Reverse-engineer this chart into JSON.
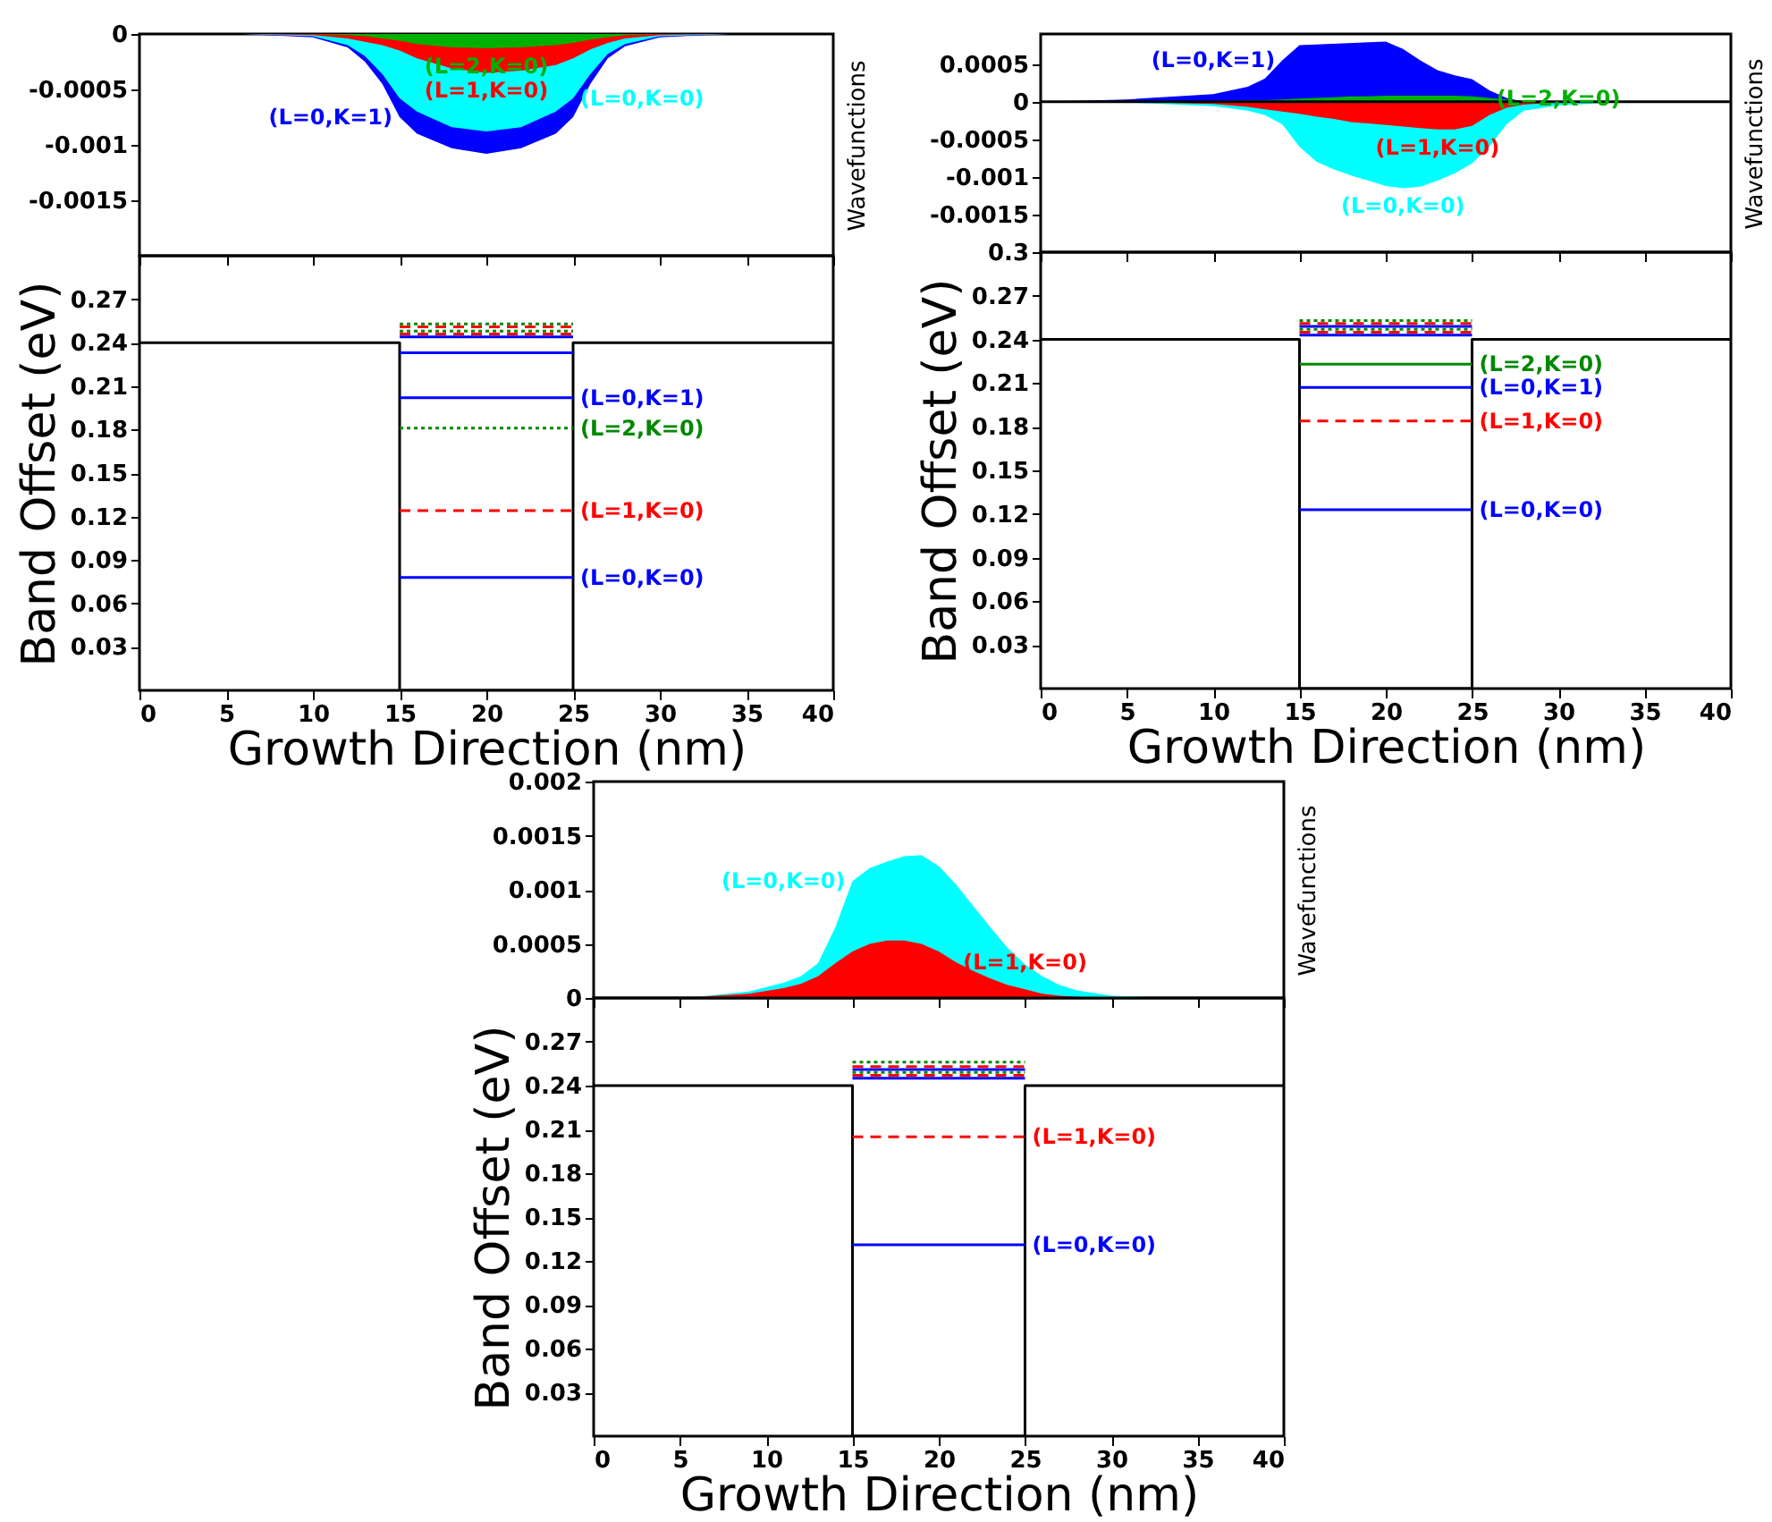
{
  "chart_data": [
    {
      "type": "area",
      "ylabel": "Wavefunctions",
      "xlim": [
        0,
        40
      ],
      "ylim": [
        -0.002,
        0
      ],
      "xticks": [
        0,
        5,
        10,
        15,
        20,
        25,
        30,
        35,
        40
      ],
      "yticks": [
        0,
        -0.0005,
        -0.001,
        -0.0015
      ],
      "tick_labels": "y",
      "x": [
        0,
        6,
        10,
        12,
        13,
        14,
        15,
        16,
        18,
        20,
        22,
        24,
        25,
        26,
        27,
        28,
        30,
        34,
        40
      ],
      "series": [
        {
          "name": "(L=0,K=1)",
          "color": "#0000ff",
          "values": [
            0,
            0,
            -3e-05,
            -0.00012,
            -0.00025,
            -0.00045,
            -0.00075,
            -0.0009,
            -0.00103,
            -0.00108,
            -0.00103,
            -0.0009,
            -0.00075,
            -0.00045,
            -0.00022,
            -0.00011,
            -3e-05,
            0,
            0
          ]
        },
        {
          "name": "(L=0,K=0)",
          "color": "#00ffff",
          "values": [
            0,
            0,
            -2e-05,
            -0.0001,
            -0.0002,
            -0.00036,
            -0.00058,
            -0.0007,
            -0.00084,
            -0.00088,
            -0.00084,
            -0.0007,
            -0.00058,
            -0.00036,
            -0.00018,
            -9e-05,
            -2e-05,
            0,
            0
          ]
        },
        {
          "name": "(L=1,K=0)",
          "color": "#ff0000",
          "values": [
            0,
            0,
            -1e-05,
            -4e-05,
            -7e-05,
            -0.0001,
            -0.00015,
            -0.00022,
            -0.00031,
            -0.00035,
            -0.00033,
            -0.00028,
            -0.00022,
            -0.00014,
            -8e-05,
            -4e-05,
            -1e-05,
            0,
            0
          ]
        },
        {
          "name": "(L=2,K=0)",
          "color": "#00b000",
          "values": [
            0,
            0,
            0,
            -1e-05,
            -2e-05,
            -4e-05,
            -6e-05,
            -9e-05,
            -0.00012,
            -0.00013,
            -0.00012,
            -0.0001,
            -8e-05,
            -5e-05,
            -3e-05,
            -1e-05,
            0,
            0,
            0
          ]
        }
      ]
    },
    {
      "type": "line",
      "xlabel": "Growth Direction (nm)",
      "ylabel": "Band Offset (eV)",
      "xlim": [
        0,
        40
      ],
      "ylim": [
        0,
        0.3
      ],
      "xticks": [
        0,
        5,
        10,
        15,
        20,
        25,
        30,
        35,
        40
      ],
      "yticks": [
        0.03,
        0.06,
        0.09,
        0.12,
        0.15,
        0.18,
        0.21,
        0.24,
        0.27
      ],
      "series": [
        {
          "color": "#000000",
          "x": [
            0,
            15,
            15,
            25,
            25,
            40
          ],
          "values": [
            0.24,
            0.24,
            0,
            0,
            0.24,
            0.24
          ]
        },
        {
          "name": "(L=0,K=0)",
          "color": "#0000ff",
          "line_style": "solid",
          "x": [
            15,
            25
          ],
          "values": [
            0.078,
            0.078
          ]
        },
        {
          "name": "(L=1,K=0)",
          "color": "#ff0000",
          "line_style": "dashed",
          "x": [
            15,
            25
          ],
          "values": [
            0.124,
            0.124
          ]
        },
        {
          "name": "(L=2,K=0)",
          "color": "#008800",
          "line_style": "dotted",
          "x": [
            15,
            25
          ],
          "values": [
            0.181,
            0.181
          ]
        },
        {
          "name": "(L=0,K=1)",
          "color": "#0000ff",
          "line_style": "solid",
          "x": [
            15,
            25
          ],
          "values": [
            0.202,
            0.202
          ]
        },
        {
          "color": "#0000ff",
          "line_style": "solid",
          "x": [
            15,
            25
          ],
          "values": [
            0.233,
            0.233
          ]
        },
        {
          "color": "#0000ff",
          "line_style": "solid",
          "x": [
            15,
            25
          ],
          "values": [
            0.244,
            0.244
          ]
        },
        {
          "color": "#ff0000",
          "line_style": "dashed",
          "x": [
            15,
            25
          ],
          "values": [
            0.246,
            0.246
          ]
        },
        {
          "color": "#008800",
          "line_style": "dotted",
          "x": [
            15,
            25
          ],
          "values": [
            0.248,
            0.248
          ]
        },
        {
          "color": "#ff0000",
          "line_style": "dashed",
          "x": [
            15,
            25
          ],
          "values": [
            0.251,
            0.251
          ]
        },
        {
          "color": "#008800",
          "line_style": "dotted",
          "x": [
            15,
            25
          ],
          "values": [
            0.253,
            0.253
          ]
        }
      ]
    },
    {
      "type": "area",
      "ylabel": "Wavefunctions",
      "xlim": [
        0,
        40
      ],
      "ylim": [
        -0.002,
        0.0009
      ],
      "xticks": [
        0,
        5,
        10,
        15,
        20,
        25,
        30,
        35,
        40
      ],
      "yticks": [
        0.0005,
        0,
        -0.0005,
        -0.001,
        -0.0015
      ],
      "tick_labels": "y",
      "x": [
        0,
        5,
        10,
        12,
        13,
        14,
        15,
        16,
        17,
        18,
        19,
        20,
        21,
        22,
        23,
        24,
        25,
        26,
        27,
        28,
        30,
        34,
        40
      ],
      "ref_lines": [
        {
          "axis": "y",
          "value": 0,
          "color": "#000000"
        }
      ],
      "series": [
        {
          "name": "(L=0,K=1)",
          "color": "#0000ff",
          "values": [
            0,
            3e-05,
            0.0001,
            0.0002,
            0.00031,
            0.00055,
            0.00075,
            null,
            null,
            null,
            null,
            0.0008,
            0.0007,
            0.00055,
            0.00042,
            0.00035,
            0.0003,
            0.00015,
            5e-05,
            0,
            0,
            0,
            0
          ]
        },
        {
          "name": "(L=2,K=0)",
          "color": "#00b000",
          "values": [
            0,
            0,
            1e-05,
            2e-05,
            2e-05,
            3e-05,
            4e-05,
            5e-05,
            6e-05,
            7e-05,
            7e-05,
            8e-05,
            8e-05,
            8e-05,
            8e-05,
            8e-05,
            7e-05,
            5e-05,
            3e-05,
            1e-05,
            0,
            0,
            0
          ]
        },
        {
          "name": "(L=0,K=0)",
          "color": "#00ffff",
          "values": [
            0,
            -1e-05,
            -6e-05,
            -0.00012,
            -0.00018,
            -0.0003,
            -0.0006,
            -0.0008,
            -0.0009,
            -0.00098,
            -0.00105,
            -0.00112,
            -0.00115,
            -0.00113,
            -0.00105,
            -0.00095,
            -0.00082,
            -0.0006,
            -0.0003,
            -0.00012,
            -5e-05,
            0,
            0
          ]
        },
        {
          "name": "(L=1,K=0)",
          "color": "#ff0000",
          "values": [
            0,
            0,
            -3e-05,
            -7e-05,
            -0.0001,
            -0.00013,
            -0.00016,
            -0.0002,
            -0.00023,
            -0.00027,
            -0.00029,
            -0.00031,
            -0.00033,
            -0.00035,
            -0.00037,
            -0.00037,
            -0.00032,
            -0.00018,
            -8e-05,
            -4e-05,
            -1e-05,
            0,
            0
          ]
        }
      ]
    },
    {
      "type": "line",
      "xlabel": "Growth Direction (nm)",
      "ylabel": "Band Offset (eV)",
      "xlim": [
        0,
        40
      ],
      "ylim": [
        0,
        0.3
      ],
      "xticks": [
        0,
        5,
        10,
        15,
        20,
        25,
        30,
        35,
        40
      ],
      "yticks": [
        0.03,
        0.06,
        0.09,
        0.12,
        0.15,
        0.18,
        0.21,
        0.24,
        0.27,
        0.3
      ],
      "series": [
        {
          "color": "#000000",
          "x": [
            0,
            15,
            15,
            25,
            25,
            40
          ],
          "values": [
            0.24,
            0.24,
            0,
            0,
            0.24,
            0.24
          ]
        },
        {
          "name": "(L=0,K=0)",
          "color": "#0000ff",
          "line_style": "solid",
          "x": [
            15,
            25
          ],
          "values": [
            0.123,
            0.123
          ]
        },
        {
          "name": "(L=1,K=0)",
          "color": "#ff0000",
          "line_style": "dashed",
          "x": [
            15,
            25
          ],
          "values": [
            0.184,
            0.184
          ]
        },
        {
          "name": "(L=0,K=1)",
          "color": "#0000ff",
          "line_style": "solid",
          "x": [
            15,
            25
          ],
          "values": [
            0.207,
            0.207
          ]
        },
        {
          "name": "(L=2,K=0)",
          "color": "#008800",
          "line_style": "solid",
          "x": [
            15,
            25
          ],
          "values": [
            0.223,
            0.223
          ]
        },
        {
          "color": "#0000ff",
          "line_style": "solid",
          "x": [
            15,
            25
          ],
          "values": [
            0.243,
            0.243
          ]
        },
        {
          "color": "#ff0000",
          "line_style": "dashed",
          "x": [
            15,
            25
          ],
          "values": [
            0.245,
            0.245
          ]
        },
        {
          "color": "#008800",
          "line_style": "dotted",
          "x": [
            15,
            25
          ],
          "values": [
            0.247,
            0.247
          ]
        },
        {
          "color": "#0000ff",
          "line_style": "solid",
          "x": [
            15,
            25
          ],
          "values": [
            0.249,
            0.249
          ]
        },
        {
          "color": "#ff0000",
          "line_style": "dashed",
          "x": [
            15,
            25
          ],
          "values": [
            0.251,
            0.251
          ]
        },
        {
          "color": "#008800",
          "line_style": "dotted",
          "x": [
            15,
            25
          ],
          "values": [
            0.253,
            0.253
          ]
        }
      ]
    },
    {
      "type": "area",
      "ylabel": "Wavefunctions",
      "xlim": [
        0,
        40
      ],
      "ylim": [
        0,
        0.002
      ],
      "xticks": [
        0,
        5,
        10,
        15,
        20,
        25,
        30,
        35,
        40
      ],
      "yticks": [
        0,
        0.0005,
        0.001,
        0.0015,
        0.002
      ],
      "tick_labels": "y",
      "x": [
        0,
        6,
        9,
        11,
        12,
        13,
        14,
        15,
        16,
        17,
        18,
        19,
        20,
        21,
        22,
        23,
        24,
        25,
        26,
        27,
        28,
        30,
        34,
        40
      ],
      "series": [
        {
          "name": "(L=0,K=0)",
          "color": "#00ffff",
          "values": [
            0,
            1e-05,
            6e-05,
            0.00014,
            0.0002,
            0.00032,
            0.00065,
            0.00108,
            0.0012,
            0.00126,
            0.00131,
            0.00132,
            0.00122,
            0.00105,
            0.00085,
            0.00065,
            0.00046,
            0.00031,
            0.0002,
            0.00012,
            7e-05,
            2e-05,
            0,
            0
          ]
        },
        {
          "name": "(L=1,K=0)",
          "color": "#ff0000",
          "values": [
            0,
            1e-05,
            4e-05,
            9e-05,
            0.00013,
            0.0002,
            0.00032,
            0.00043,
            0.0005,
            0.00053,
            0.00053,
            0.0005,
            0.00043,
            0.00033,
            0.00025,
            0.00018,
            0.00012,
            8e-05,
            4e-05,
            2e-05,
            1e-05,
            0,
            0,
            0
          ]
        }
      ]
    },
    {
      "type": "line",
      "xlabel": "Growth Direction (nm)",
      "ylabel": "Band Offset (eV)",
      "xlim": [
        0,
        40
      ],
      "ylim": [
        0,
        0.3
      ],
      "xticks": [
        0,
        5,
        10,
        15,
        20,
        25,
        30,
        35,
        40
      ],
      "yticks": [
        0.03,
        0.06,
        0.09,
        0.12,
        0.15,
        0.18,
        0.21,
        0.24,
        0.27
      ],
      "series": [
        {
          "color": "#000000",
          "x": [
            0,
            15,
            15,
            25,
            25,
            40
          ],
          "values": [
            0.24,
            0.24,
            0,
            0,
            0.24,
            0.24
          ]
        },
        {
          "name": "(L=0,K=0)",
          "color": "#0000ff",
          "line_style": "solid",
          "x": [
            15,
            25
          ],
          "values": [
            0.131,
            0.131
          ]
        },
        {
          "name": "(L=1,K=0)",
          "color": "#ff0000",
          "line_style": "dashed",
          "x": [
            15,
            25
          ],
          "values": [
            0.205,
            0.205
          ]
        },
        {
          "color": "#0000ff",
          "line_style": "solid",
          "x": [
            15,
            25
          ],
          "values": [
            0.245,
            0.245
          ]
        },
        {
          "color": "#ff0000",
          "line_style": "dashed",
          "x": [
            15,
            25
          ],
          "values": [
            0.247,
            0.247
          ]
        },
        {
          "color": "#008800",
          "line_style": "dotted",
          "x": [
            15,
            25
          ],
          "values": [
            0.249,
            0.249
          ]
        },
        {
          "color": "#0000ff",
          "line_style": "solid",
          "x": [
            15,
            25
          ],
          "values": [
            0.251,
            0.251
          ]
        },
        {
          "color": "#ff0000",
          "line_style": "dashed",
          "x": [
            15,
            25
          ],
          "values": [
            0.253,
            0.253
          ]
        },
        {
          "color": "#008800",
          "line_style": "dotted",
          "x": [
            15,
            25
          ],
          "values": [
            0.256,
            0.256
          ]
        }
      ]
    }
  ]
}
